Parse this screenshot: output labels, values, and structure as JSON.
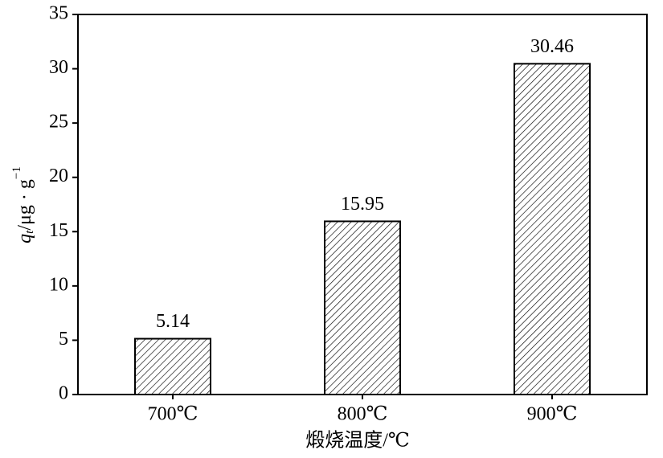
{
  "chart_data": {
    "type": "bar",
    "x_label": "煅烧温度/℃",
    "y_label": [
      "q",
      "t",
      "/μg · g",
      "−1"
    ],
    "categories": [
      "700℃",
      "800℃",
      "900℃"
    ],
    "values": [
      5.14,
      15.95,
      30.46
    ],
    "color": "#000000",
    "hatch": true,
    "ylim": [
      0,
      35
    ],
    "yticks": [
      0,
      5,
      10,
      15,
      20,
      25,
      30,
      35
    ],
    "grid": false
  }
}
